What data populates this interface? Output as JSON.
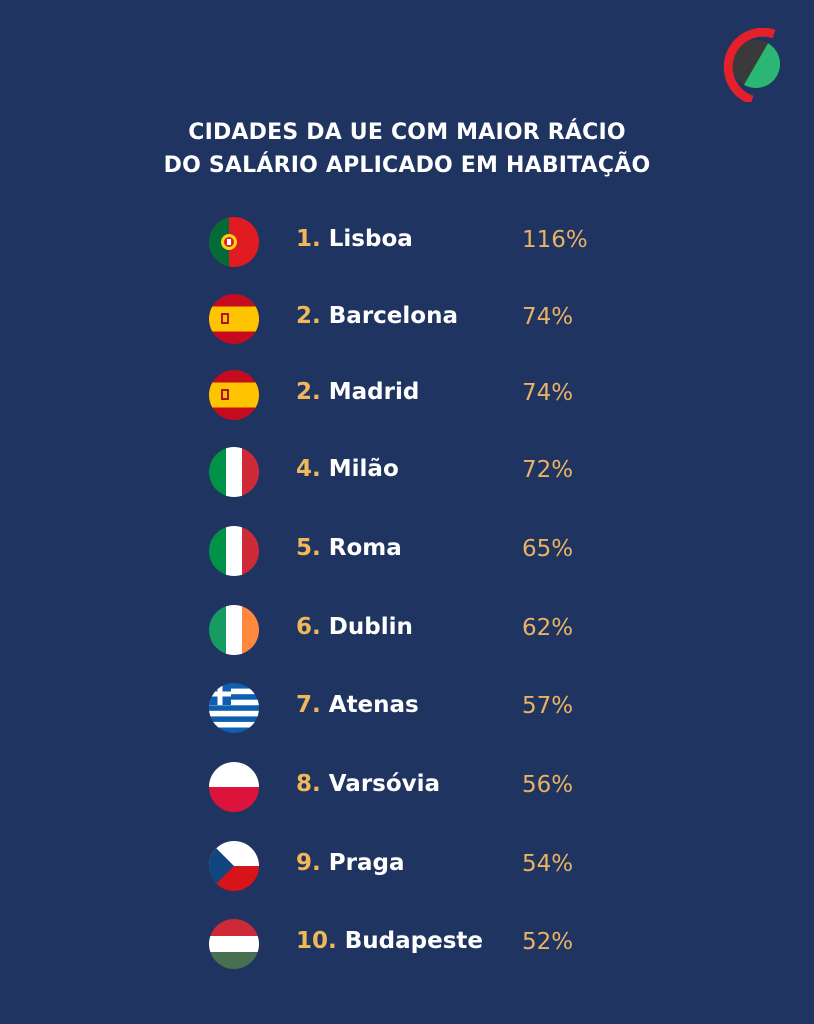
{
  "header": {
    "title_line1": "CIDADES DA UE COM MAIOR RÁCIO",
    "title_line2": "DO SALÁRIO APLICADO EM HABITAÇÃO"
  },
  "logo": {
    "icon": "brand-circle-logo",
    "colors": [
      "#e4202b",
      "#3a3a3a",
      "#2bb673"
    ]
  },
  "ranking": [
    {
      "rank": "1.",
      "city": "Lisboa",
      "value": "116%",
      "flag": "portugal-flag-icon"
    },
    {
      "rank": "2.",
      "city": "Barcelona",
      "value": "74%",
      "flag": "spain-flag-icon"
    },
    {
      "rank": "2.",
      "city": "Madrid",
      "value": "74%",
      "flag": "spain-flag-icon"
    },
    {
      "rank": "4.",
      "city": "Milão",
      "value": "72%",
      "flag": "italy-flag-icon"
    },
    {
      "rank": "5.",
      "city": "Roma",
      "value": "65%",
      "flag": "italy-flag-icon"
    },
    {
      "rank": "6.",
      "city": "Dublin",
      "value": "62%",
      "flag": "ireland-flag-icon"
    },
    {
      "rank": "7.",
      "city": "Atenas",
      "value": "57%",
      "flag": "greece-flag-icon"
    },
    {
      "rank": "8.",
      "city": "Varsóvia",
      "value": "56%",
      "flag": "poland-flag-icon"
    },
    {
      "rank": "9.",
      "city": "Praga",
      "value": "54%",
      "flag": "czechia-flag-icon"
    },
    {
      "rank": "10.",
      "city": "Budapeste",
      "value": "52%",
      "flag": "hungary-flag-icon"
    }
  ],
  "colors": {
    "background": "#1f3460",
    "rank": "#f0b85a",
    "value": "#e9b264",
    "city": "#ffffff"
  }
}
